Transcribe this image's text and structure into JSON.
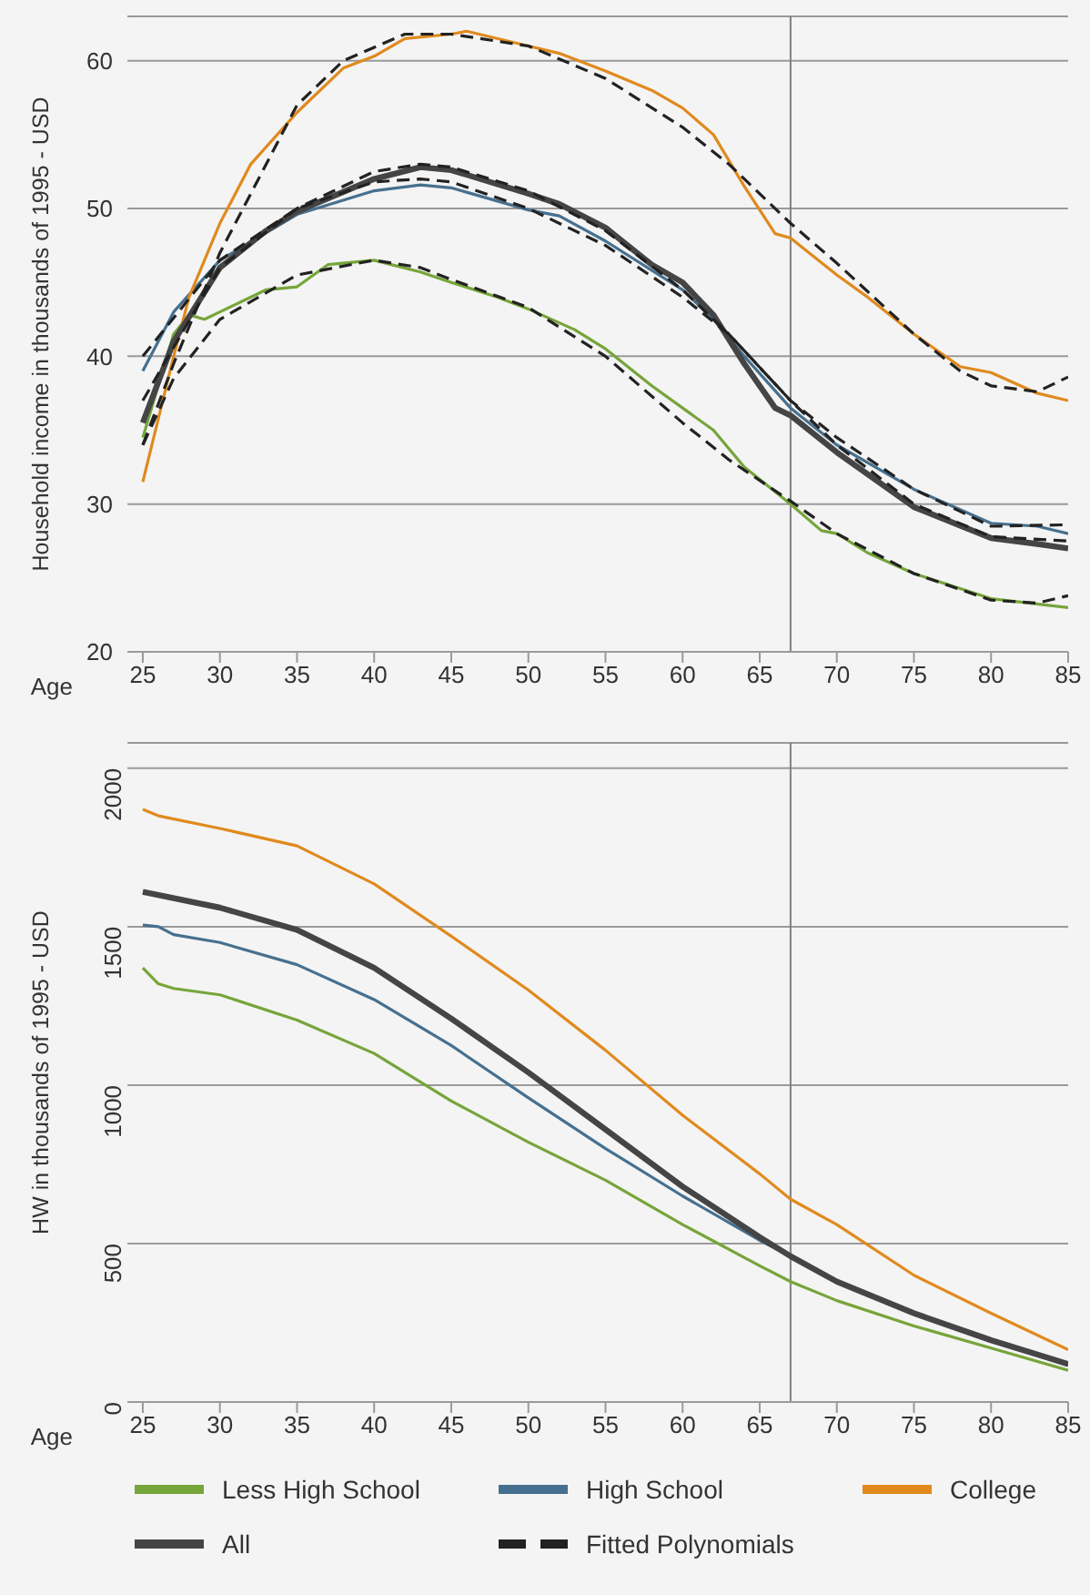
{
  "chart_data": [
    {
      "type": "line",
      "xlabel": "Age",
      "ylabel": "Household income in thousands of 1995 - USD",
      "xlim": [
        24,
        85
      ],
      "xticks": [
        25,
        30,
        35,
        40,
        45,
        50,
        55,
        60,
        65,
        70,
        75,
        80,
        85
      ],
      "ylim": [
        20,
        63
      ],
      "yticks": [
        20,
        30,
        40,
        50,
        60
      ],
      "grid": "y",
      "marker": "none",
      "line_style": "solid",
      "ref_lines": [
        {
          "axis": "x",
          "value": 67,
          "color": "#808080"
        }
      ],
      "series": [
        {
          "color": "#76a53a",
          "x": [
            25,
            27,
            28,
            29,
            30,
            33,
            35,
            37,
            40,
            43,
            45,
            48,
            50,
            53,
            55,
            58,
            60,
            62,
            64,
            67,
            69,
            70,
            72,
            75,
            80,
            85
          ],
          "values": [
            34.5,
            41.5,
            42.8,
            42.5,
            43,
            44.5,
            44.7,
            46.2,
            46.5,
            45.7,
            45,
            44,
            43.2,
            41.8,
            40.5,
            38,
            36.5,
            35,
            32.5,
            30,
            28.2,
            28,
            26.7,
            25.3,
            23.6,
            23
          ]
        },
        {
          "color": "#46708f",
          "x": [
            25,
            27,
            30,
            35,
            40,
            43,
            45,
            50,
            52,
            55,
            60,
            62,
            64,
            67,
            70,
            75,
            80,
            83,
            85
          ],
          "values": [
            39,
            43,
            46.5,
            49.6,
            51.2,
            51.6,
            51.4,
            49.9,
            49.5,
            47.8,
            44.5,
            42.5,
            40,
            36.5,
            34,
            31,
            28.7,
            28.5,
            28
          ]
        },
        {
          "color": "#e08a1e",
          "x": [
            25,
            27,
            28,
            30,
            32,
            35,
            38,
            40,
            42,
            45,
            46,
            50,
            52,
            55,
            58,
            60,
            62,
            64,
            66,
            67,
            70,
            72,
            75,
            78,
            80,
            83,
            85
          ],
          "values": [
            31.5,
            40,
            44,
            49,
            53,
            56.5,
            59.5,
            60.3,
            61.5,
            61.8,
            62,
            61,
            60.5,
            59.3,
            58,
            56.8,
            55,
            51.5,
            48.3,
            48,
            45.5,
            44,
            41.5,
            39.3,
            38.9,
            37.5,
            37
          ]
        },
        {
          "color": "#454545",
          "x": [
            25,
            27,
            30,
            33,
            35,
            40,
            43,
            45,
            50,
            52,
            55,
            58,
            60,
            62,
            64,
            66,
            67,
            70,
            75,
            80,
            83,
            85
          ],
          "values": [
            35.5,
            41,
            46,
            48.5,
            49.8,
            52,
            52.8,
            52.6,
            51,
            50.3,
            48.7,
            46.2,
            45,
            42.8,
            39.5,
            36.5,
            36,
            33.5,
            29.8,
            27.7,
            27.3,
            27
          ]
        },
        {
          "name": "Fitted Polynomials",
          "color": "#222222",
          "line_style": "dashed",
          "x": [
            25,
            27,
            30,
            35,
            40,
            43,
            45,
            50,
            55,
            60,
            63,
            67,
            70,
            75,
            80,
            83,
            85
          ],
          "values": [
            34,
            38.5,
            42.5,
            45.5,
            46.5,
            46,
            45.2,
            43.3,
            40,
            35.5,
            33,
            30.2,
            28,
            25.3,
            23.5,
            23.3,
            23.8
          ]
        },
        {
          "color": "#222222",
          "line_style": "dashed",
          "x": [
            25,
            30,
            35,
            40,
            43,
            45,
            50,
            55,
            60,
            63,
            67,
            70,
            75,
            80,
            85
          ],
          "values": [
            40,
            46.5,
            50,
            51.8,
            52,
            51.8,
            50,
            47.5,
            44,
            41.5,
            37,
            34.5,
            31,
            28.5,
            28.6
          ]
        },
        {
          "color": "#222222",
          "line_style": "dashed",
          "x": [
            25,
            27,
            30,
            35,
            38,
            42,
            45,
            50,
            55,
            60,
            63,
            67,
            70,
            75,
            78,
            80,
            83,
            85
          ],
          "values": [
            34,
            39.5,
            47,
            57,
            60,
            61.8,
            61.8,
            61,
            58.8,
            55.5,
            53,
            49,
            46.3,
            41.5,
            39,
            38,
            37.6,
            38.6
          ]
        },
        {
          "color": "#222222",
          "line_style": "dashed",
          "x": [
            25,
            30,
            35,
            40,
            43,
            45,
            50,
            55,
            60,
            63,
            67,
            70,
            75,
            80,
            85
          ],
          "values": [
            37,
            46,
            50,
            52.5,
            53,
            52.8,
            51.2,
            48.5,
            44.5,
            41.5,
            37,
            34,
            30,
            27.8,
            27.5
          ]
        }
      ]
    },
    {
      "type": "line",
      "xlabel": "Age",
      "ylabel": "HW in thousands of 1995 - USD",
      "xlim": [
        24,
        85
      ],
      "xticks": [
        25,
        30,
        35,
        40,
        45,
        50,
        55,
        60,
        65,
        70,
        75,
        80,
        85
      ],
      "ylim": [
        0,
        2080
      ],
      "yticks": [
        0,
        500,
        1000,
        1500,
        2000
      ],
      "grid": "y",
      "marker": "none",
      "line_style": "solid",
      "legend": "bottom",
      "ref_lines": [
        {
          "axis": "x",
          "value": 67,
          "color": "#808080"
        }
      ],
      "series": [
        {
          "name": "Less High School",
          "color": "#76a53a",
          "x": [
            25,
            26,
            27,
            30,
            35,
            40,
            45,
            50,
            55,
            60,
            65,
            67,
            70,
            75,
            80,
            85
          ],
          "values": [
            1370,
            1320,
            1305,
            1285,
            1205,
            1100,
            950,
            820,
            700,
            560,
            430,
            380,
            320,
            240,
            170,
            100
          ]
        },
        {
          "name": "High School",
          "color": "#46708f",
          "x": [
            25,
            26,
            27,
            30,
            35,
            40,
            45,
            50,
            55,
            60,
            65,
            67,
            70,
            75,
            80,
            85
          ],
          "values": [
            1505,
            1500,
            1475,
            1450,
            1380,
            1270,
            1125,
            960,
            800,
            650,
            510,
            460,
            380,
            280,
            195,
            115
          ]
        },
        {
          "name": "College",
          "color": "#e08a1e",
          "x": [
            25,
            26,
            30,
            35,
            40,
            45,
            50,
            55,
            60,
            65,
            67,
            70,
            75,
            80,
            85
          ],
          "values": [
            1870,
            1850,
            1810,
            1755,
            1635,
            1470,
            1300,
            1110,
            905,
            720,
            640,
            560,
            400,
            280,
            165
          ]
        },
        {
          "name": "All",
          "color": "#454545",
          "x": [
            25,
            30,
            35,
            40,
            45,
            50,
            55,
            60,
            65,
            67,
            70,
            75,
            80,
            85
          ],
          "values": [
            1610,
            1560,
            1490,
            1370,
            1210,
            1040,
            860,
            680,
            520,
            460,
            380,
            280,
            195,
            120
          ]
        }
      ]
    }
  ]
}
